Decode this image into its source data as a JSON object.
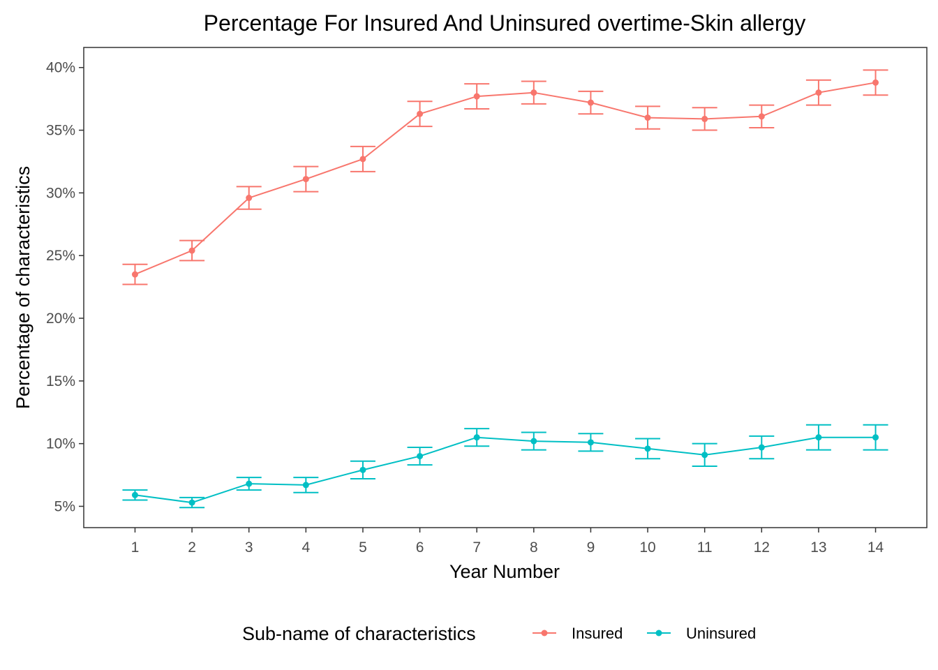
{
  "chart_data": {
    "type": "line",
    "title": "Percentage For Insured And Uninsured overtime-Skin allergy",
    "xlabel": "Year Number",
    "ylabel": "Percentage of characteristics",
    "x": [
      1,
      2,
      3,
      4,
      5,
      6,
      7,
      8,
      9,
      10,
      11,
      12,
      13,
      14
    ],
    "x_tick_labels": [
      "1",
      "2",
      "3",
      "4",
      "5",
      "6",
      "7",
      "8",
      "9",
      "10",
      "11",
      "12",
      "13",
      "14"
    ],
    "xlim": [
      0.1,
      14.9
    ],
    "ylim": [
      3.3,
      41.6
    ],
    "y_ticks": [
      5,
      10,
      15,
      20,
      25,
      30,
      35,
      40
    ],
    "y_tick_labels": [
      "5%",
      "10%",
      "15%",
      "20%",
      "25%",
      "30%",
      "35%",
      "40%"
    ],
    "grid": false,
    "legend": {
      "title": "Sub-name of characteristics",
      "position": "bottom",
      "entries": [
        "Insured",
        "Uninsured"
      ]
    },
    "series": [
      {
        "name": "Insured",
        "color": "#F8766D",
        "values": [
          23.5,
          25.4,
          29.6,
          31.1,
          32.7,
          36.3,
          37.7,
          38.0,
          37.2,
          36.0,
          35.9,
          36.1,
          38.0,
          38.8
        ],
        "lower": [
          22.7,
          24.6,
          28.7,
          30.1,
          31.7,
          35.3,
          36.7,
          37.1,
          36.3,
          35.1,
          35.0,
          35.2,
          37.0,
          37.8
        ],
        "upper": [
          24.3,
          26.2,
          30.5,
          32.1,
          33.7,
          37.3,
          38.7,
          38.9,
          38.1,
          36.9,
          36.8,
          37.0,
          39.0,
          39.8
        ]
      },
      {
        "name": "Uninsured",
        "color": "#00BFC4",
        "values": [
          5.9,
          5.3,
          6.8,
          6.7,
          7.9,
          9.0,
          10.5,
          10.2,
          10.1,
          9.6,
          9.1,
          9.7,
          10.5,
          10.5
        ],
        "lower": [
          5.5,
          4.9,
          6.3,
          6.1,
          7.2,
          8.3,
          9.8,
          9.5,
          9.4,
          8.8,
          8.2,
          8.8,
          9.5,
          9.5
        ],
        "upper": [
          6.3,
          5.7,
          7.3,
          7.3,
          8.6,
          9.7,
          11.2,
          10.9,
          10.8,
          10.4,
          10.0,
          10.6,
          11.5,
          11.5
        ]
      }
    ]
  }
}
